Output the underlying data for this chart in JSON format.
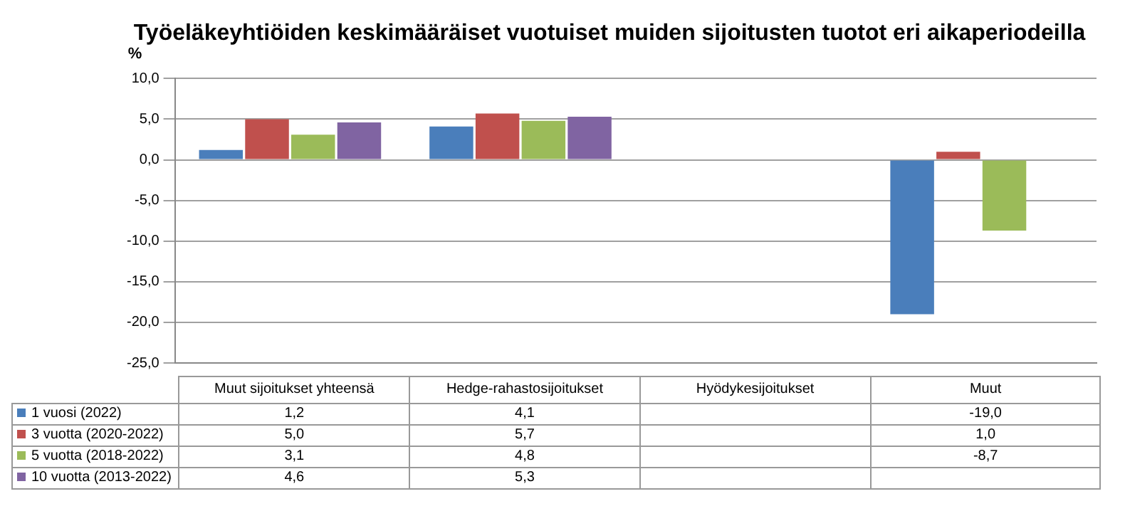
{
  "chart_data": {
    "type": "bar",
    "title": "Työeläkeyhtiöiden keskimääräiset vuotuiset muiden sijoitusten tuotot eri aikaperiodeilla",
    "ylabel": "%",
    "categories": [
      "Muut sijoitukset yhteensä",
      "Hedge-rahastosijoitukset",
      "Hyödykesijoitukset",
      "Muut"
    ],
    "series": [
      {
        "name": "1 vuosi (2022)",
        "color": "#4a7ebb",
        "values": [
          1.2,
          4.1,
          null,
          -19.0
        ],
        "value_labels": [
          "1,2",
          "4,1",
          null,
          "-19,0"
        ]
      },
      {
        "name": "3 vuotta (2020-2022)",
        "color": "#c0504d",
        "values": [
          5.0,
          5.7,
          null,
          1.0
        ],
        "value_labels": [
          "5,0",
          "5,7",
          null,
          "1,0"
        ]
      },
      {
        "name": "5 vuotta (2018-2022)",
        "color": "#9bbb59",
        "values": [
          3.1,
          4.8,
          null,
          -8.7
        ],
        "value_labels": [
          "3,1",
          "4,8",
          null,
          "-8,7"
        ]
      },
      {
        "name": "10 vuotta (2013-2022)",
        "color": "#8064a2",
        "values": [
          4.6,
          5.3,
          null,
          null
        ],
        "value_labels": [
          "4,6",
          "5,3",
          null,
          null
        ]
      }
    ],
    "ylim": [
      -25,
      10
    ],
    "yticks": [
      {
        "value": -25,
        "label": "-25,0"
      },
      {
        "value": -20,
        "label": "-20,0"
      },
      {
        "value": -15,
        "label": "-15,0"
      },
      {
        "value": -10,
        "label": "-10,0"
      },
      {
        "value": -5,
        "label": "-5,0"
      },
      {
        "value": 0,
        "label": "0,0"
      },
      {
        "value": 5,
        "label": "5,0"
      },
      {
        "value": 10,
        "label": "10,0"
      }
    ],
    "grid": "y",
    "legend": "bottom"
  }
}
